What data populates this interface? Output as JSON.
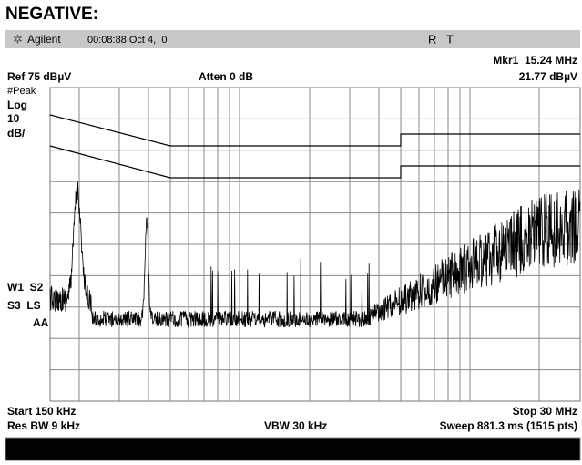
{
  "title": "NEGATIVE:",
  "status_bar": {
    "brand": "Agilent",
    "time": "00:08:88 Oct 4,  0",
    "flags": "R   T"
  },
  "header": {
    "marker": "Mkr1  15.24 MHz",
    "ref_level": "Ref 75 dBµV",
    "attenuation": "Atten 0 dB",
    "marker_value": "21.77 dBµV"
  },
  "left_labels": [
    "#Peak",
    "Log",
    "10",
    "dB/"
  ],
  "mode_labels": [
    "W1  S2",
    "S3  LS",
    "AA"
  ],
  "footer": {
    "start": "Start 150 kHz",
    "stop": "Stop 30 MHz",
    "res_bw": "Res BW 9 kHz",
    "vbw": "VBW 30 kHz",
    "sweep": "Sweep 881.3 ms (1515 pts)"
  }
}
